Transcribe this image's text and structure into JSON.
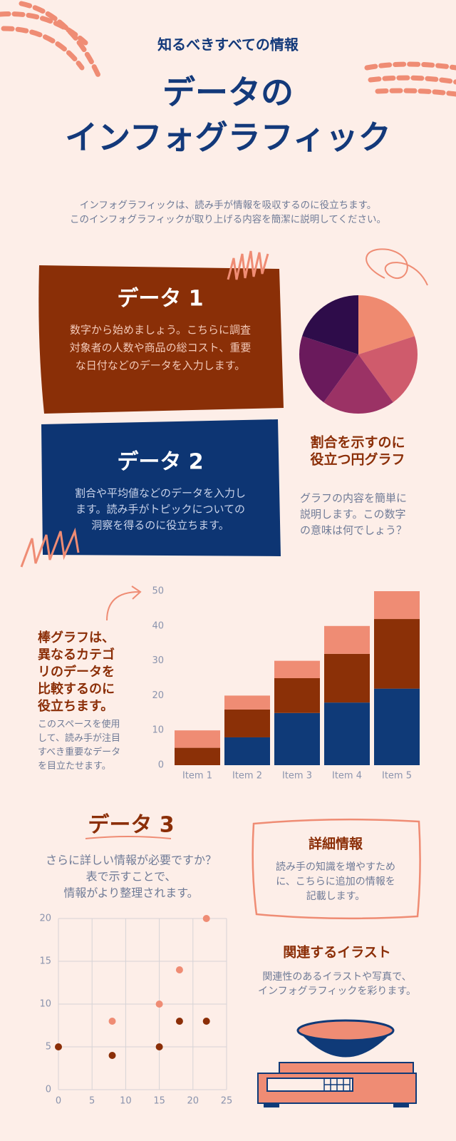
{
  "header": {
    "kicker": "知るべきすべての情報",
    "title": [
      "データの",
      "インフォグラフィック"
    ],
    "intro": [
      "インフォグラフィックは、読み手が情報を吸収するのに役立ちます。",
      "このインフォグラフィックが取り上げる内容を簡潔に説明してください。"
    ]
  },
  "data1": {
    "title": "データ 1",
    "body": [
      "数字から始めましょう。こちらに調査",
      "対象者の人数や商品の総コスト、重要",
      "な日付などのデータを入力します。"
    ]
  },
  "data2": {
    "title": "データ 2",
    "body": [
      "割合や平均値などのデータを入力し",
      "ます。読み手がトピックについての",
      "洞察を得るのに役立ちます。"
    ]
  },
  "bar_note": {
    "title": [
      "棒グラフは、",
      "異なるカテゴ",
      "リのデータを",
      "比較するのに",
      "役立ちます。"
    ],
    "body": [
      "このスペースを使用",
      "して、読み手が注目",
      "すべき重要なデータ",
      "を目立たせます。"
    ]
  },
  "data3": {
    "title": "データ 3",
    "body": [
      "さらに詳しい情報が必要ですか？",
      "表で示すことで、",
      "情報がより整理されます。"
    ]
  },
  "details": {
    "title": "詳細情報",
    "body": [
      "読み手の知識を増やすため",
      "に、こちらに追加の情報を",
      "記載します。"
    ]
  },
  "illustration": {
    "title": "関連するイラスト",
    "body": [
      "関連性のあるイラストや写真で、",
      "インフォグラフィックを彩ります。"
    ]
  },
  "chart_data": [
    {
      "type": "pie",
      "title": [
        "割合を示すのに",
        "役立つ円グラフ"
      ],
      "note": [
        "グラフの内容を簡単に",
        "説明します。この数字",
        "の意味は何でしょう？"
      ],
      "values": [
        20,
        20,
        20,
        20,
        20
      ],
      "colors": [
        "#ef8a70",
        "#cf5b6c",
        "#9b3265",
        "#6a1a5c",
        "#2e0c4a"
      ]
    },
    {
      "type": "bar",
      "stacked": true,
      "categories": [
        "Item 1",
        "Item 2",
        "Item 3",
        "Item 4",
        "Item 5"
      ],
      "series": [
        {
          "color": "#0f3a78",
          "values": [
            0,
            8,
            15,
            18,
            22
          ]
        },
        {
          "color": "#8b3007",
          "values": [
            5,
            8,
            10,
            14,
            20
          ]
        },
        {
          "color": "#ef8c74",
          "values": [
            5,
            4,
            5,
            8,
            8
          ]
        }
      ],
      "ylim": [
        0,
        50
      ],
      "yticks": [
        0,
        10,
        20,
        30,
        40,
        50
      ]
    },
    {
      "type": "scatter",
      "grid": true,
      "series": [
        {
          "color": "#8b2e07",
          "x": [
            0,
            8,
            15,
            18,
            22
          ],
          "values": [
            5,
            4,
            5,
            8,
            8
          ]
        },
        {
          "color": "#ef8c74",
          "x": [
            8,
            15,
            18,
            22
          ],
          "values": [
            8,
            10,
            14,
            20
          ]
        }
      ],
      "xlim": [
        0,
        25
      ],
      "xticks": [
        0,
        5,
        10,
        15,
        20,
        25
      ],
      "ylim": [
        0,
        20
      ],
      "yticks": [
        0,
        5,
        10,
        15,
        20
      ]
    }
  ]
}
